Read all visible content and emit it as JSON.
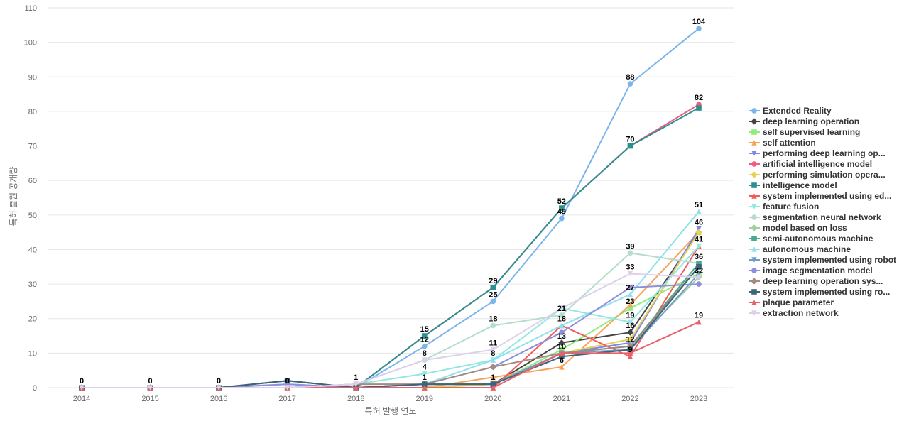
{
  "chart_data": {
    "type": "line",
    "title": "",
    "xlabel": "특허 발행 연도",
    "ylabel": "특허 출원 공개량",
    "x": [
      "2014",
      "2015",
      "2016",
      "2017",
      "2018",
      "2019",
      "2020",
      "2021",
      "2022",
      "2023"
    ],
    "ylim": [
      0,
      110
    ],
    "yticks": [
      0,
      10,
      20,
      30,
      40,
      50,
      60,
      70,
      80,
      90,
      100,
      110
    ],
    "grid": true,
    "legend_position": "right",
    "series": [
      {
        "name": "Extended Reality",
        "color": "#7cb5ec",
        "marker": "circle",
        "values": [
          0,
          0,
          0,
          1,
          0,
          12,
          25,
          49,
          88,
          104
        ]
      },
      {
        "name": "deep learning operation",
        "color": "#434348",
        "marker": "diamond",
        "values": [
          0,
          0,
          0,
          0,
          0,
          1,
          1,
          13,
          16,
          45
        ]
      },
      {
        "name": "self supervised learning",
        "color": "#90ed7d",
        "marker": "square",
        "values": [
          0,
          0,
          0,
          0,
          0,
          0,
          1,
          11,
          23,
          33
        ]
      },
      {
        "name": "self attention",
        "color": "#f7a35c",
        "marker": "triangle",
        "values": [
          0,
          0,
          0,
          0,
          0,
          0,
          3,
          6,
          24,
          45
        ]
      },
      {
        "name": "performing deep learning op...",
        "color": "#8085e9",
        "marker": "triangle-down",
        "values": [
          0,
          0,
          0,
          0,
          0,
          1,
          1,
          10,
          13,
          46
        ]
      },
      {
        "name": "artificial intelligence model",
        "color": "#f15c80",
        "marker": "circle",
        "values": [
          0,
          0,
          0,
          2,
          0,
          15,
          29,
          52,
          70,
          82
        ]
      },
      {
        "name": "performing simulation opera...",
        "color": "#e4d354",
        "marker": "diamond",
        "values": [
          0,
          0,
          0,
          0,
          0,
          0,
          1,
          10,
          14,
          45
        ]
      },
      {
        "name": "intelligence model",
        "color": "#2b908f",
        "marker": "square",
        "values": [
          0,
          0,
          0,
          2,
          0,
          15,
          29,
          52,
          70,
          81
        ]
      },
      {
        "name": "system implemented using ed...",
        "color": "#f45b5b",
        "marker": "triangle",
        "values": [
          0,
          0,
          0,
          0,
          0,
          0,
          0,
          18,
          9,
          41
        ]
      },
      {
        "name": "feature fusion",
        "color": "#91e8e1",
        "marker": "triangle-down",
        "values": [
          0,
          0,
          0,
          0,
          1,
          4,
          8,
          23,
          19,
          41
        ]
      },
      {
        "name": "segmentation neural network",
        "color": "#b4ddd0",
        "marker": "circle",
        "values": [
          0,
          0,
          0,
          0,
          1,
          8,
          18,
          21,
          39,
          36
        ]
      },
      {
        "name": "model based on loss",
        "color": "#9fd09f",
        "marker": "diamond",
        "values": [
          0,
          0,
          0,
          0,
          0,
          1,
          1,
          10,
          12,
          32
        ]
      },
      {
        "name": "semi-autonomous machine",
        "color": "#4aa98c",
        "marker": "square",
        "values": [
          0,
          0,
          0,
          0,
          0,
          1,
          1,
          10,
          12,
          36
        ]
      },
      {
        "name": "autonomous machine",
        "color": "#8fe0ec",
        "marker": "triangle",
        "values": [
          0,
          0,
          0,
          0,
          0,
          1,
          8,
          18,
          27,
          51
        ]
      },
      {
        "name": "system implemented using robot",
        "color": "#6f9bc9",
        "marker": "triangle-down",
        "values": [
          0,
          0,
          0,
          0,
          0,
          1,
          1,
          10,
          11,
          33
        ]
      },
      {
        "name": "image segmentation model",
        "color": "#8d8fdb",
        "marker": "circle",
        "values": [
          0,
          0,
          0,
          1,
          0,
          1,
          6,
          16,
          29,
          30
        ]
      },
      {
        "name": "deep learning operation sys...",
        "color": "#a58a7f",
        "marker": "diamond",
        "values": [
          0,
          0,
          0,
          0,
          1,
          1,
          6,
          10,
          12,
          35
        ]
      },
      {
        "name": "system implemented using ro...",
        "color": "#3e6478",
        "marker": "square",
        "values": [
          0,
          0,
          0,
          2,
          0,
          1,
          1,
          9,
          11,
          35
        ]
      },
      {
        "name": "plaque parameter",
        "color": "#e8606c",
        "marker": "triangle",
        "values": [
          0,
          0,
          0,
          0,
          0,
          0,
          0,
          10,
          10,
          19
        ]
      },
      {
        "name": "extraction network",
        "color": "#ddd0ea",
        "marker": "triangle-down",
        "values": [
          0,
          0,
          0,
          0,
          1,
          8,
          11,
          23,
          33,
          32
        ]
      }
    ],
    "data_labels": [
      {
        "x": "2014",
        "value": 0
      },
      {
        "x": "2015",
        "value": 0
      },
      {
        "x": "2016",
        "value": 0
      },
      {
        "x": "2017",
        "value": 0
      },
      {
        "x": "2018",
        "value": 1
      },
      {
        "x": "2019",
        "value": 15
      },
      {
        "x": "2019",
        "value": 12
      },
      {
        "x": "2019",
        "value": 8
      },
      {
        "x": "2019",
        "value": 4
      },
      {
        "x": "2019",
        "value": 1
      },
      {
        "x": "2020",
        "value": 29
      },
      {
        "x": "2020",
        "value": 25
      },
      {
        "x": "2020",
        "value": 18
      },
      {
        "x": "2020",
        "value": 11
      },
      {
        "x": "2020",
        "value": 8
      },
      {
        "x": "2020",
        "value": 1
      },
      {
        "x": "2021",
        "value": 52
      },
      {
        "x": "2021",
        "value": 49
      },
      {
        "x": "2021",
        "value": 21
      },
      {
        "x": "2021",
        "value": 18
      },
      {
        "x": "2021",
        "value": 13
      },
      {
        "x": "2021",
        "value": 10
      },
      {
        "x": "2021",
        "value": 6
      },
      {
        "x": "2022",
        "value": 88
      },
      {
        "x": "2022",
        "value": 70
      },
      {
        "x": "2022",
        "value": 39
      },
      {
        "x": "2022",
        "value": 33
      },
      {
        "x": "2022",
        "value": 27
      },
      {
        "x": "2022",
        "value": 23
      },
      {
        "x": "2022",
        "value": 19
      },
      {
        "x": "2022",
        "value": 16
      },
      {
        "x": "2022",
        "value": 12
      },
      {
        "x": "2022",
        "value": 9
      },
      {
        "x": "2023",
        "value": 104
      },
      {
        "x": "2023",
        "value": 82
      },
      {
        "x": "2023",
        "value": 51
      },
      {
        "x": "2023",
        "value": 46
      },
      {
        "x": "2023",
        "value": 41
      },
      {
        "x": "2023",
        "value": 36
      },
      {
        "x": "2023",
        "value": 32
      },
      {
        "x": "2023",
        "value": 19
      }
    ]
  }
}
